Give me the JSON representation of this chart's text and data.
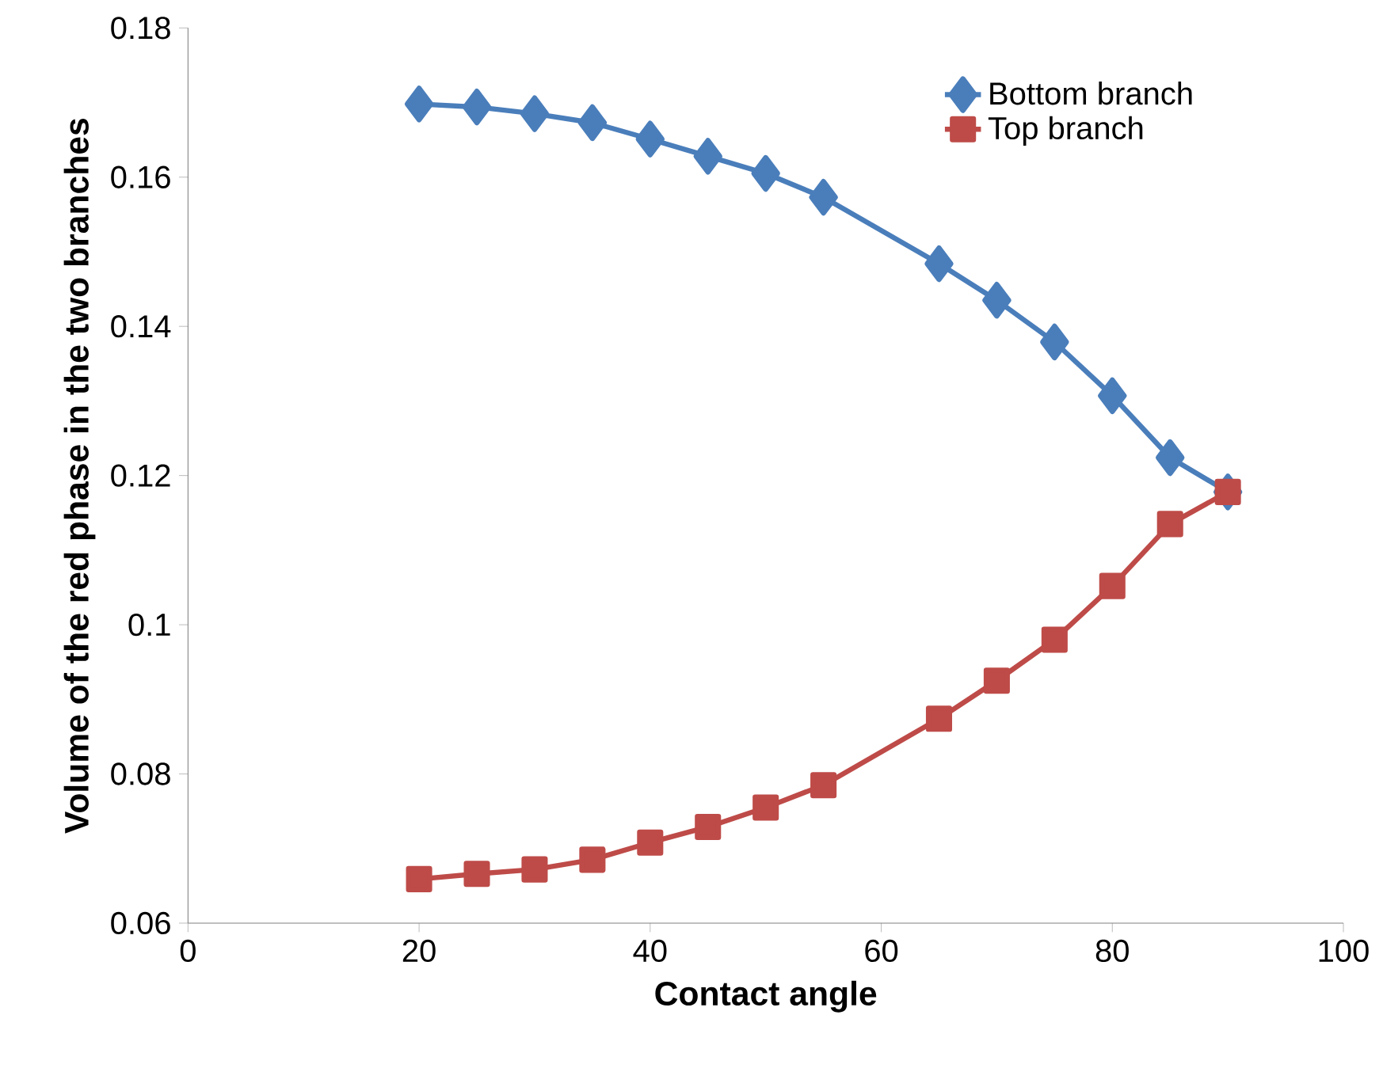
{
  "chart_data": {
    "type": "line",
    "xlabel": "Contact angle",
    "ylabel": "Volume of the red phase in the two branches",
    "x": [
      20,
      25,
      30,
      35,
      40,
      45,
      50,
      55,
      65,
      70,
      75,
      80,
      85,
      90
    ],
    "series": [
      {
        "name": "Bottom branch",
        "color": "#4a7ebb",
        "marker": "diamond",
        "values": [
          0.1698,
          0.1694,
          0.1685,
          0.1673,
          0.1651,
          0.1628,
          0.1605,
          0.1573,
          0.1484,
          0.1435,
          0.1379,
          0.1307,
          0.1224,
          0.1178
        ]
      },
      {
        "name": "Top branch",
        "color": "#be4b48",
        "marker": "square",
        "values": [
          0.0659,
          0.0666,
          0.0672,
          0.0685,
          0.0708,
          0.0729,
          0.0755,
          0.0785,
          0.0874,
          0.0925,
          0.098,
          0.1052,
          0.1135,
          0.1178
        ]
      }
    ],
    "xlim": [
      0,
      100
    ],
    "xticks": [
      0,
      20,
      40,
      60,
      80,
      100
    ],
    "ylim": [
      0.06,
      0.18
    ],
    "yticks": [
      0.06,
      0.08,
      0.1,
      0.12,
      0.14,
      0.16,
      0.18
    ],
    "grid": false,
    "legend": "top right",
    "line_style": "solid"
  }
}
